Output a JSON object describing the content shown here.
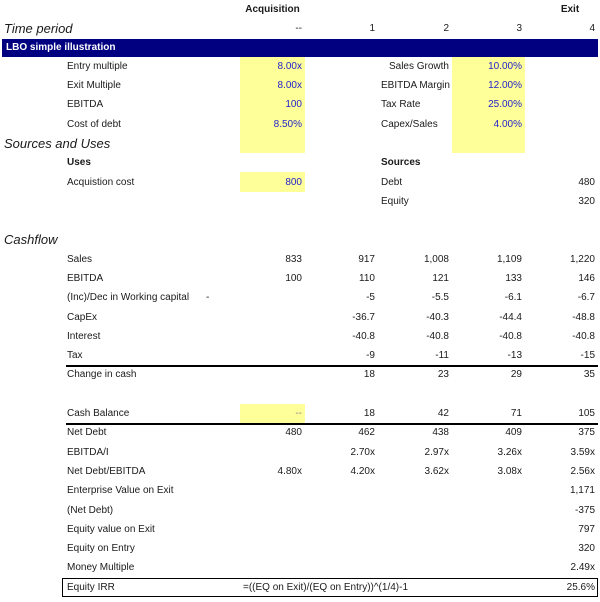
{
  "header": {
    "acquisition": "Acquisition",
    "exit": "Exit",
    "time_period": "Time period",
    "periods": [
      "--",
      "1",
      "2",
      "3",
      "4"
    ]
  },
  "banner": "LBO simple illustration",
  "assumptions": {
    "left": [
      {
        "label": "Entry multiple",
        "value": "8.00x"
      },
      {
        "label": "Exit Multiple",
        "value": "8.00x"
      },
      {
        "label": "EBITDA",
        "value": "100"
      },
      {
        "label": "Cost of debt",
        "value": "8.50%"
      }
    ],
    "right": [
      {
        "label": "Sales Growth",
        "value": "10.00%"
      },
      {
        "label": "EBITDA Margin",
        "value": "12.00%"
      },
      {
        "label": "Tax Rate",
        "value": "25.00%"
      },
      {
        "label": "Capex/Sales",
        "value": "4.00%"
      }
    ]
  },
  "sources_uses": {
    "title": "Sources and Uses",
    "uses": "Uses",
    "sources": "Sources",
    "acq_label": "Acquistion cost",
    "acq_value": "800",
    "debt_label": "Debt",
    "debt_value": "480",
    "equity_label": "Equity",
    "equity_value": "320"
  },
  "cashflow": {
    "title": "Cashflow",
    "rows": [
      {
        "label": "Sales",
        "v": [
          "833",
          "917",
          "1,008",
          "1,109",
          "1,220"
        ]
      },
      {
        "label": "EBITDA",
        "v": [
          "100",
          "110",
          "121",
          "133",
          "146"
        ]
      },
      {
        "label": "(Inc)/Dec in Working capital",
        "dash": "-",
        "v": [
          "",
          "-5",
          "-5.5",
          "-6.1",
          "-6.7"
        ]
      },
      {
        "label": "CapEx",
        "v": [
          "",
          "-36.7",
          "-40.3",
          "-44.4",
          "-48.8"
        ]
      },
      {
        "label": "Interest",
        "v": [
          "",
          "-40.8",
          "-40.8",
          "-40.8",
          "-40.8"
        ]
      },
      {
        "label": "Tax",
        "v": [
          "",
          "-9",
          "-11",
          "-13",
          "-15"
        ]
      },
      {
        "label": "Change in cash",
        "v": [
          "",
          "18",
          "23",
          "29",
          "35"
        ]
      },
      {
        "label": "Cash Balance",
        "v": [
          "--",
          "18",
          "42",
          "71",
          "105"
        ]
      },
      {
        "label": "Net Debt",
        "v": [
          "480",
          "462",
          "438",
          "409",
          "375"
        ]
      },
      {
        "label": "EBITDA/I",
        "v": [
          "",
          "2.70x",
          "2.97x",
          "3.26x",
          "3.59x"
        ]
      },
      {
        "label": "Net Debt/EBITDA",
        "v": [
          "4.80x",
          "4.20x",
          "3.62x",
          "3.08x",
          "2.56x"
        ]
      },
      {
        "label": "Enterprise Value on Exit",
        "v": [
          "",
          "",
          "",
          "",
          "1,171"
        ]
      },
      {
        "label": "(Net Debt)",
        "v": [
          "",
          "",
          "",
          "",
          "-375"
        ]
      },
      {
        "label": "Equity value on Exit",
        "v": [
          "",
          "",
          "",
          "",
          "797"
        ]
      },
      {
        "label": "Equity on Entry",
        "v": [
          "",
          "",
          "",
          "",
          "320"
        ]
      },
      {
        "label": "Money Multiple",
        "v": [
          "",
          "",
          "",
          "",
          "2.49x"
        ]
      }
    ]
  },
  "irr": {
    "label": "Equity IRR",
    "formula": "=((EQ on Exit)/(EQ on Entry))^(1/4)-1",
    "value": "25.6%"
  },
  "colors": {
    "banner": "#000080",
    "input_fill": "#ffff99",
    "input_text": "#2222cc"
  }
}
